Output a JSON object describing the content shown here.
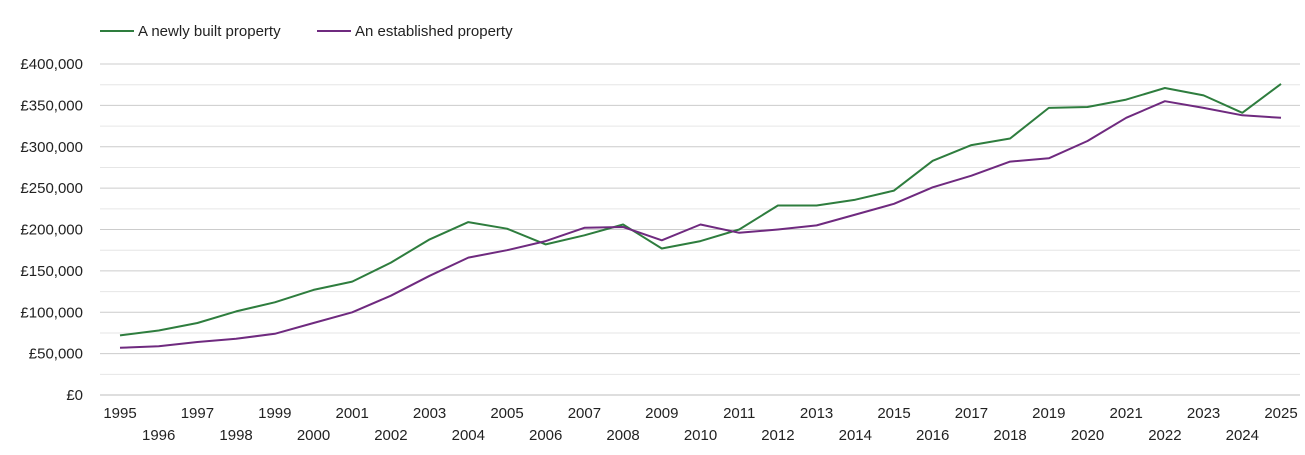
{
  "chart_data": {
    "type": "line",
    "title": "",
    "xlabel": "",
    "ylabel": "",
    "x": [
      1995,
      1996,
      1997,
      1998,
      1999,
      2000,
      2001,
      2002,
      2003,
      2004,
      2005,
      2006,
      2007,
      2008,
      2009,
      2010,
      2011,
      2012,
      2013,
      2014,
      2015,
      2016,
      2017,
      2018,
      2019,
      2020,
      2021,
      2022,
      2023,
      2024,
      2025
    ],
    "x_tick_labels": [
      "1995",
      "1996",
      "1997",
      "1998",
      "1999",
      "2000",
      "2001",
      "2002",
      "2003",
      "2004",
      "2005",
      "2006",
      "2007",
      "2008",
      "2009",
      "2010",
      "2011",
      "2012",
      "2013",
      "2014",
      "2015",
      "2016",
      "2017",
      "2018",
      "2019",
      "2020",
      "2021",
      "2022",
      "2023",
      "2024",
      "2025"
    ],
    "ylim": [
      0,
      400000
    ],
    "y_ticks": [
      0,
      50000,
      100000,
      150000,
      200000,
      250000,
      300000,
      350000,
      400000
    ],
    "y_tick_labels": [
      "£0",
      "£50,000",
      "£100,000",
      "£150,000",
      "£200,000",
      "£250,000",
      "£300,000",
      "£350,000",
      "£400,000"
    ],
    "grid": true,
    "legend_position": "top-left",
    "series": [
      {
        "name": "A newly built property",
        "color": "#2e7d3e",
        "values": [
          72000,
          78000,
          87000,
          101000,
          112000,
          127000,
          137000,
          160000,
          188000,
          209000,
          201000,
          182000,
          193000,
          206000,
          177000,
          186000,
          200000,
          229000,
          229000,
          236000,
          247000,
          283000,
          302000,
          310000,
          347000,
          348000,
          357000,
          371000,
          362000,
          341000,
          376000
        ]
      },
      {
        "name": "An established property",
        "color": "#6f2a7f",
        "values": [
          57000,
          59000,
          64000,
          68000,
          74000,
          87000,
          100000,
          120000,
          144000,
          166000,
          175000,
          186000,
          202000,
          203000,
          187000,
          206000,
          196000,
          200000,
          205000,
          218000,
          231000,
          251000,
          265000,
          282000,
          286000,
          307000,
          335000,
          355000,
          347000,
          338000,
          335000
        ]
      }
    ]
  }
}
